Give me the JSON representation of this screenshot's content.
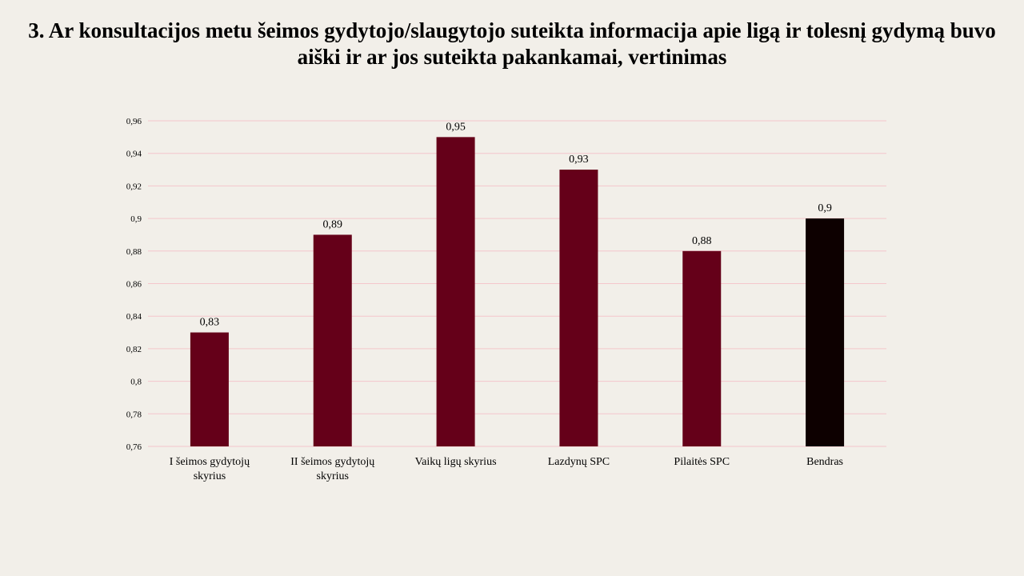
{
  "title_lines": [
    "3. Ar konsultacijos metu šeimos gydytojo/slaugytojo suteikta informacija apie ligą ir tolesnį gydymą buvo",
    "aiški ir ar jos suteikta pakankamai, vertinimas"
  ],
  "chart_data": {
    "type": "bar",
    "title": "3. Ar konsultacijos metu šeimos gydytojo/slaugytojo suteikta informacija apie ligą ir tolesnį gydymą buvo aiški ir ar jos suteikta pakankamai, vertinimas",
    "categories": [
      [
        "I šeimos gydytojų",
        "skyrius"
      ],
      [
        "II šeimos gydytojų",
        "skyrius"
      ],
      [
        "Vaikų ligų skyrius"
      ],
      [
        "Lazdynų SPC"
      ],
      [
        "Pilaitės SPC"
      ],
      [
        "Bendras"
      ]
    ],
    "values": [
      0.83,
      0.89,
      0.95,
      0.93,
      0.88,
      0.9
    ],
    "value_labels": [
      "0,83",
      "0,89",
      "0,95",
      "0,93",
      "0,88",
      "0,9"
    ],
    "bar_colors": [
      "#650019",
      "#650019",
      "#650019",
      "#650019",
      "#650019",
      "#0d0000"
    ],
    "ylim": [
      0.76,
      0.96
    ],
    "y_ticks": [
      0.76,
      0.78,
      0.8,
      0.82,
      0.84,
      0.86,
      0.88,
      0.9,
      0.92,
      0.94,
      0.96
    ],
    "y_tick_labels": [
      "0,76",
      "0,78",
      "0,8",
      "0,82",
      "0,84",
      "0,86",
      "0,88",
      "0,9",
      "0,92",
      "0,94",
      "0,96"
    ],
    "grid": true,
    "grid_color": "#f4c6cc",
    "xlabel": "",
    "ylabel": ""
  }
}
